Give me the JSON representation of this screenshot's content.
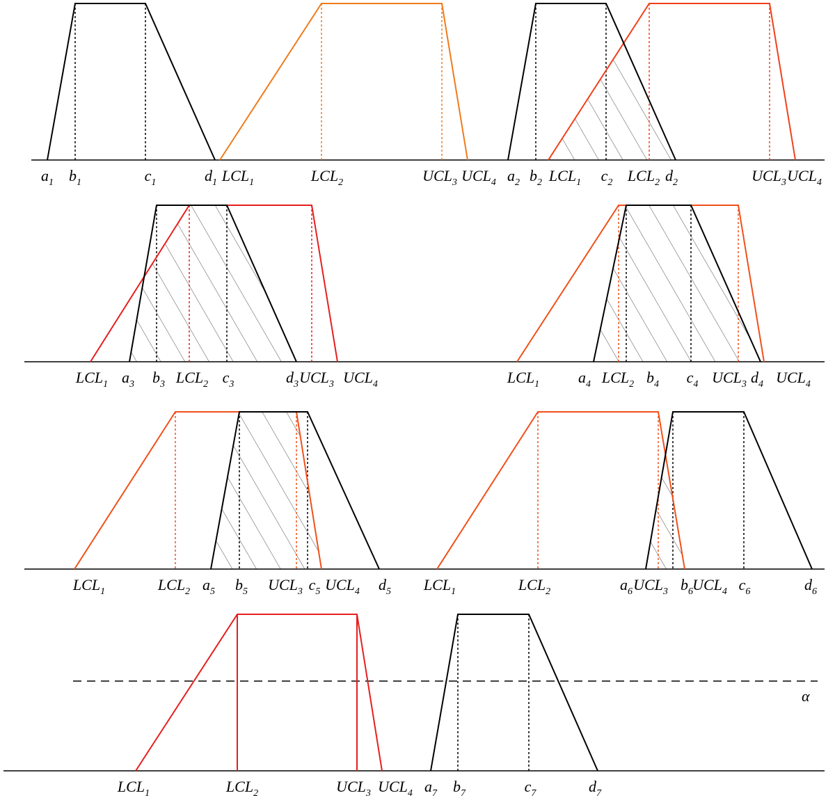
{
  "panels": [
    {
      "labels": [
        {
          "text": "a",
          "sub": "1"
        },
        {
          "text": "b",
          "sub": "1"
        },
        {
          "text": "c",
          "sub": "1"
        },
        {
          "text": "d",
          "sub": "1"
        },
        {
          "text": "LCL",
          "sub": "1"
        },
        {
          "text": "LCL",
          "sub": "2"
        },
        {
          "text": "UCL",
          "sub": "3"
        },
        {
          "text": "UCL",
          "sub": "4"
        }
      ]
    },
    {
      "labels": [
        {
          "text": "a",
          "sub": "2"
        },
        {
          "text": "b",
          "sub": "2"
        },
        {
          "text": "LCL",
          "sub": "1"
        },
        {
          "text": "c",
          "sub": "2"
        },
        {
          "text": "LCL",
          "sub": "2"
        },
        {
          "text": "d",
          "sub": "2"
        },
        {
          "text": "UCL",
          "sub": "3"
        },
        {
          "text": "UCL",
          "sub": "4"
        }
      ]
    },
    {
      "labels": [
        {
          "text": "LCL",
          "sub": "1"
        },
        {
          "text": "a",
          "sub": "3"
        },
        {
          "text": "b",
          "sub": "3"
        },
        {
          "text": "LCL",
          "sub": "2"
        },
        {
          "text": "c",
          "sub": "3"
        },
        {
          "text": "d",
          "sub": "3"
        },
        {
          "text": "UCL",
          "sub": "3"
        },
        {
          "text": "UCL",
          "sub": "4"
        }
      ]
    },
    {
      "labels": [
        {
          "text": "LCL",
          "sub": "1"
        },
        {
          "text": "a",
          "sub": "4"
        },
        {
          "text": "LCL",
          "sub": "2"
        },
        {
          "text": "b",
          "sub": "4"
        },
        {
          "text": "c",
          "sub": "4"
        },
        {
          "text": "UCL",
          "sub": "3"
        },
        {
          "text": "d",
          "sub": "4"
        },
        {
          "text": "UCL",
          "sub": "4"
        }
      ]
    },
    {
      "labels": [
        {
          "text": "LCL",
          "sub": "1"
        },
        {
          "text": "LCL",
          "sub": "2"
        },
        {
          "text": "a",
          "sub": "5"
        },
        {
          "text": "b",
          "sub": "5"
        },
        {
          "text": "UCL",
          "sub": "3"
        },
        {
          "text": "c",
          "sub": "5"
        },
        {
          "text": "UCL",
          "sub": "4"
        },
        {
          "text": "d",
          "sub": "5"
        }
      ]
    },
    {
      "labels": [
        {
          "text": "LCL",
          "sub": "1"
        },
        {
          "text": "LCL",
          "sub": "2"
        },
        {
          "text": "a",
          "sub": "6"
        },
        {
          "text": "UCL",
          "sub": "3"
        },
        {
          "text": "b",
          "sub": "6"
        },
        {
          "text": "UCL",
          "sub": "4"
        },
        {
          "text": "c",
          "sub": "6"
        },
        {
          "text": "d",
          "sub": "6"
        }
      ]
    },
    {
      "labels": [
        {
          "text": "LCL",
          "sub": "1"
        },
        {
          "text": "LCL",
          "sub": "2"
        },
        {
          "text": "UCL",
          "sub": "3"
        },
        {
          "text": "UCL",
          "sub": "4"
        },
        {
          "text": "a",
          "sub": "7"
        },
        {
          "text": "b",
          "sub": "7"
        },
        {
          "text": "c",
          "sub": "7"
        },
        {
          "text": "d",
          "sub": "7"
        }
      ]
    }
  ],
  "alpha": "α"
}
